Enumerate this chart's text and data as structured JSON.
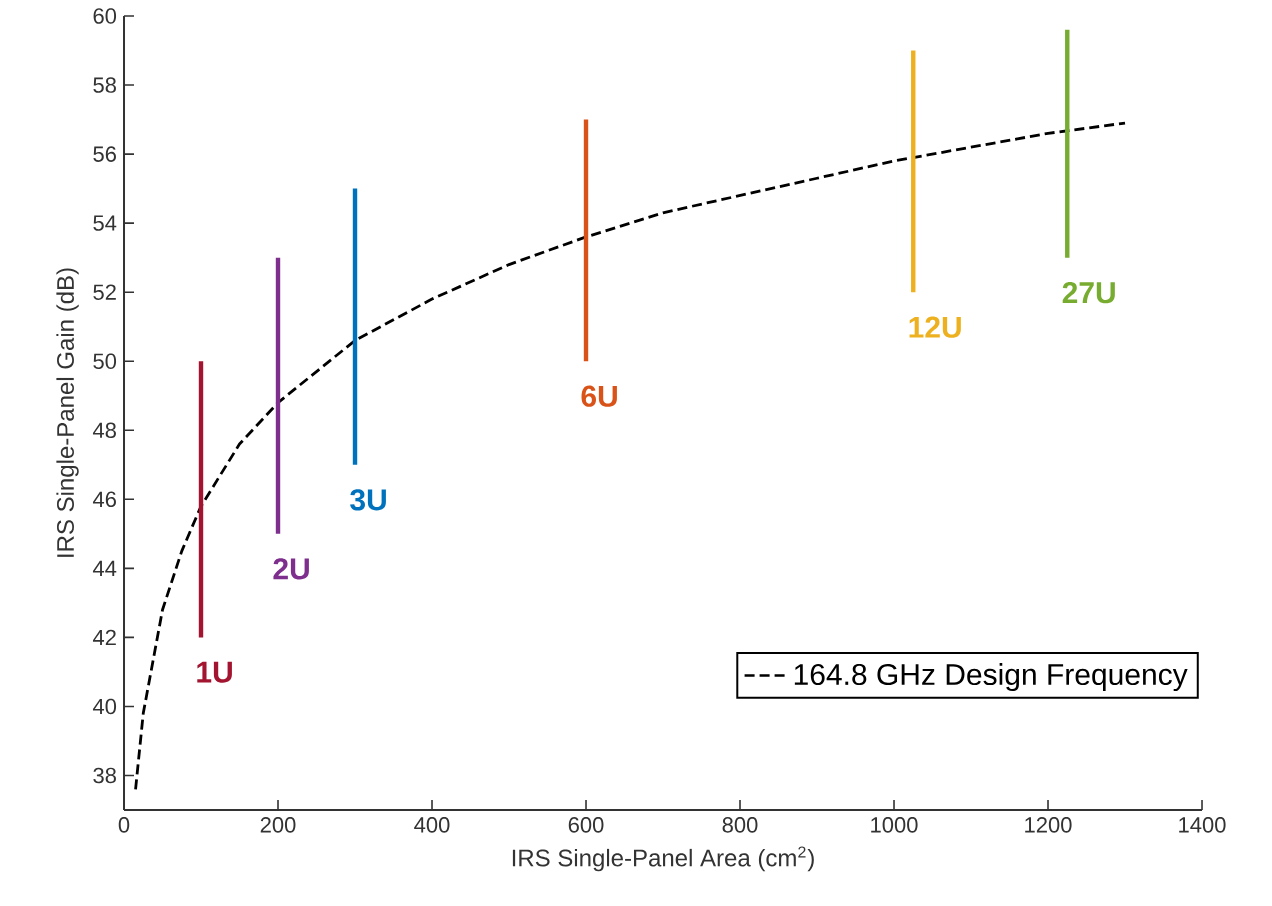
{
  "chart_data": {
    "type": "line",
    "xlabel": "IRS Single-Panel Area (cm$^{2}$)",
    "ylabel": "IRS Single-Panel Gain (dB)",
    "xlim": [
      0,
      1400
    ],
    "ylim": [
      37,
      60
    ],
    "xticks": [
      0,
      200,
      400,
      600,
      800,
      1000,
      1200,
      1400
    ],
    "yticks": [
      38,
      40,
      42,
      44,
      46,
      48,
      50,
      52,
      54,
      56,
      58,
      60
    ],
    "grid": false,
    "legend": "bottom right",
    "series": [
      {
        "name": "164.8 GHz Design Frequency",
        "color": "#000000",
        "line_style": "dashed",
        "x": [
          15,
          25,
          50,
          75,
          100,
          150,
          200,
          300,
          400,
          500,
          600,
          700,
          800,
          900,
          1000,
          1100,
          1200,
          1300
        ],
        "values": [
          37.6,
          39.8,
          42.8,
          44.5,
          45.8,
          47.6,
          48.8,
          50.6,
          51.8,
          52.8,
          53.6,
          54.3,
          54.8,
          55.3,
          55.8,
          56.2,
          56.6,
          56.9
        ]
      },
      {
        "name": "1U",
        "color": "#a2142f",
        "x": [
          100,
          100
        ],
        "values": [
          42,
          50
        ]
      },
      {
        "name": "2U",
        "color": "#7e2f8e",
        "x": [
          200,
          200
        ],
        "values": [
          45,
          53
        ]
      },
      {
        "name": "3U",
        "color": "#0072bd",
        "x": [
          300,
          300
        ],
        "values": [
          47,
          55
        ]
      },
      {
        "name": "6U",
        "color": "#d95319",
        "x": [
          600,
          600
        ],
        "values": [
          50,
          57
        ]
      },
      {
        "name": "12U",
        "color": "#edb120",
        "x": [
          1025,
          1025
        ],
        "values": [
          52,
          59
        ]
      },
      {
        "name": "27U",
        "color": "#77ac30",
        "x": [
          1225,
          1225
        ],
        "values": [
          53,
          59.6
        ]
      }
    ]
  }
}
